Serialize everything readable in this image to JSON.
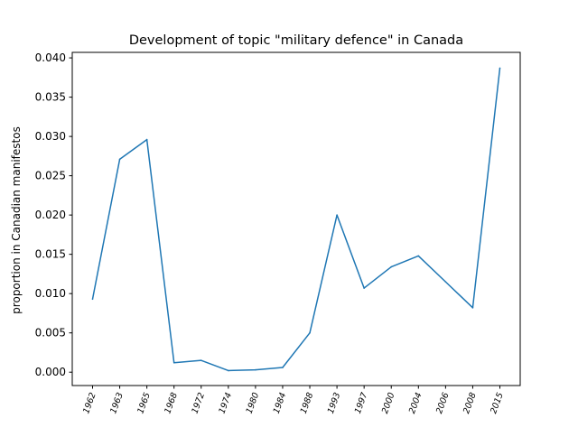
{
  "chart_data": {
    "type": "line",
    "title": "Development of topic \"military defence\" in Canada",
    "xlabel": "",
    "ylabel": "proportion in Canadian manifestos",
    "categories": [
      "1962",
      "1963",
      "1965",
      "1968",
      "1972",
      "1974",
      "1980",
      "1984",
      "1988",
      "1993",
      "1997",
      "2000",
      "2004",
      "2006",
      "2008",
      "2015"
    ],
    "series": [
      {
        "values": [
          0.0093,
          0.0271,
          0.0296,
          0.0012,
          0.0015,
          0.0002,
          0.0003,
          0.0006,
          0.005,
          0.02,
          0.0107,
          0.0134,
          0.0148,
          0.0115,
          0.0082,
          0.0387
        ],
        "color": "#1f77b4"
      }
    ],
    "ylim": [
      -0.0017,
      0.0407
    ],
    "yticks": [
      "0.000",
      "0.005",
      "0.010",
      "0.015",
      "0.020",
      "0.025",
      "0.030",
      "0.035",
      "0.040"
    ],
    "ytick_values": [
      0,
      0.005,
      0.01,
      0.015,
      0.02,
      0.025,
      0.03,
      0.035,
      0.04
    ],
    "grid": false,
    "legend": "none"
  }
}
